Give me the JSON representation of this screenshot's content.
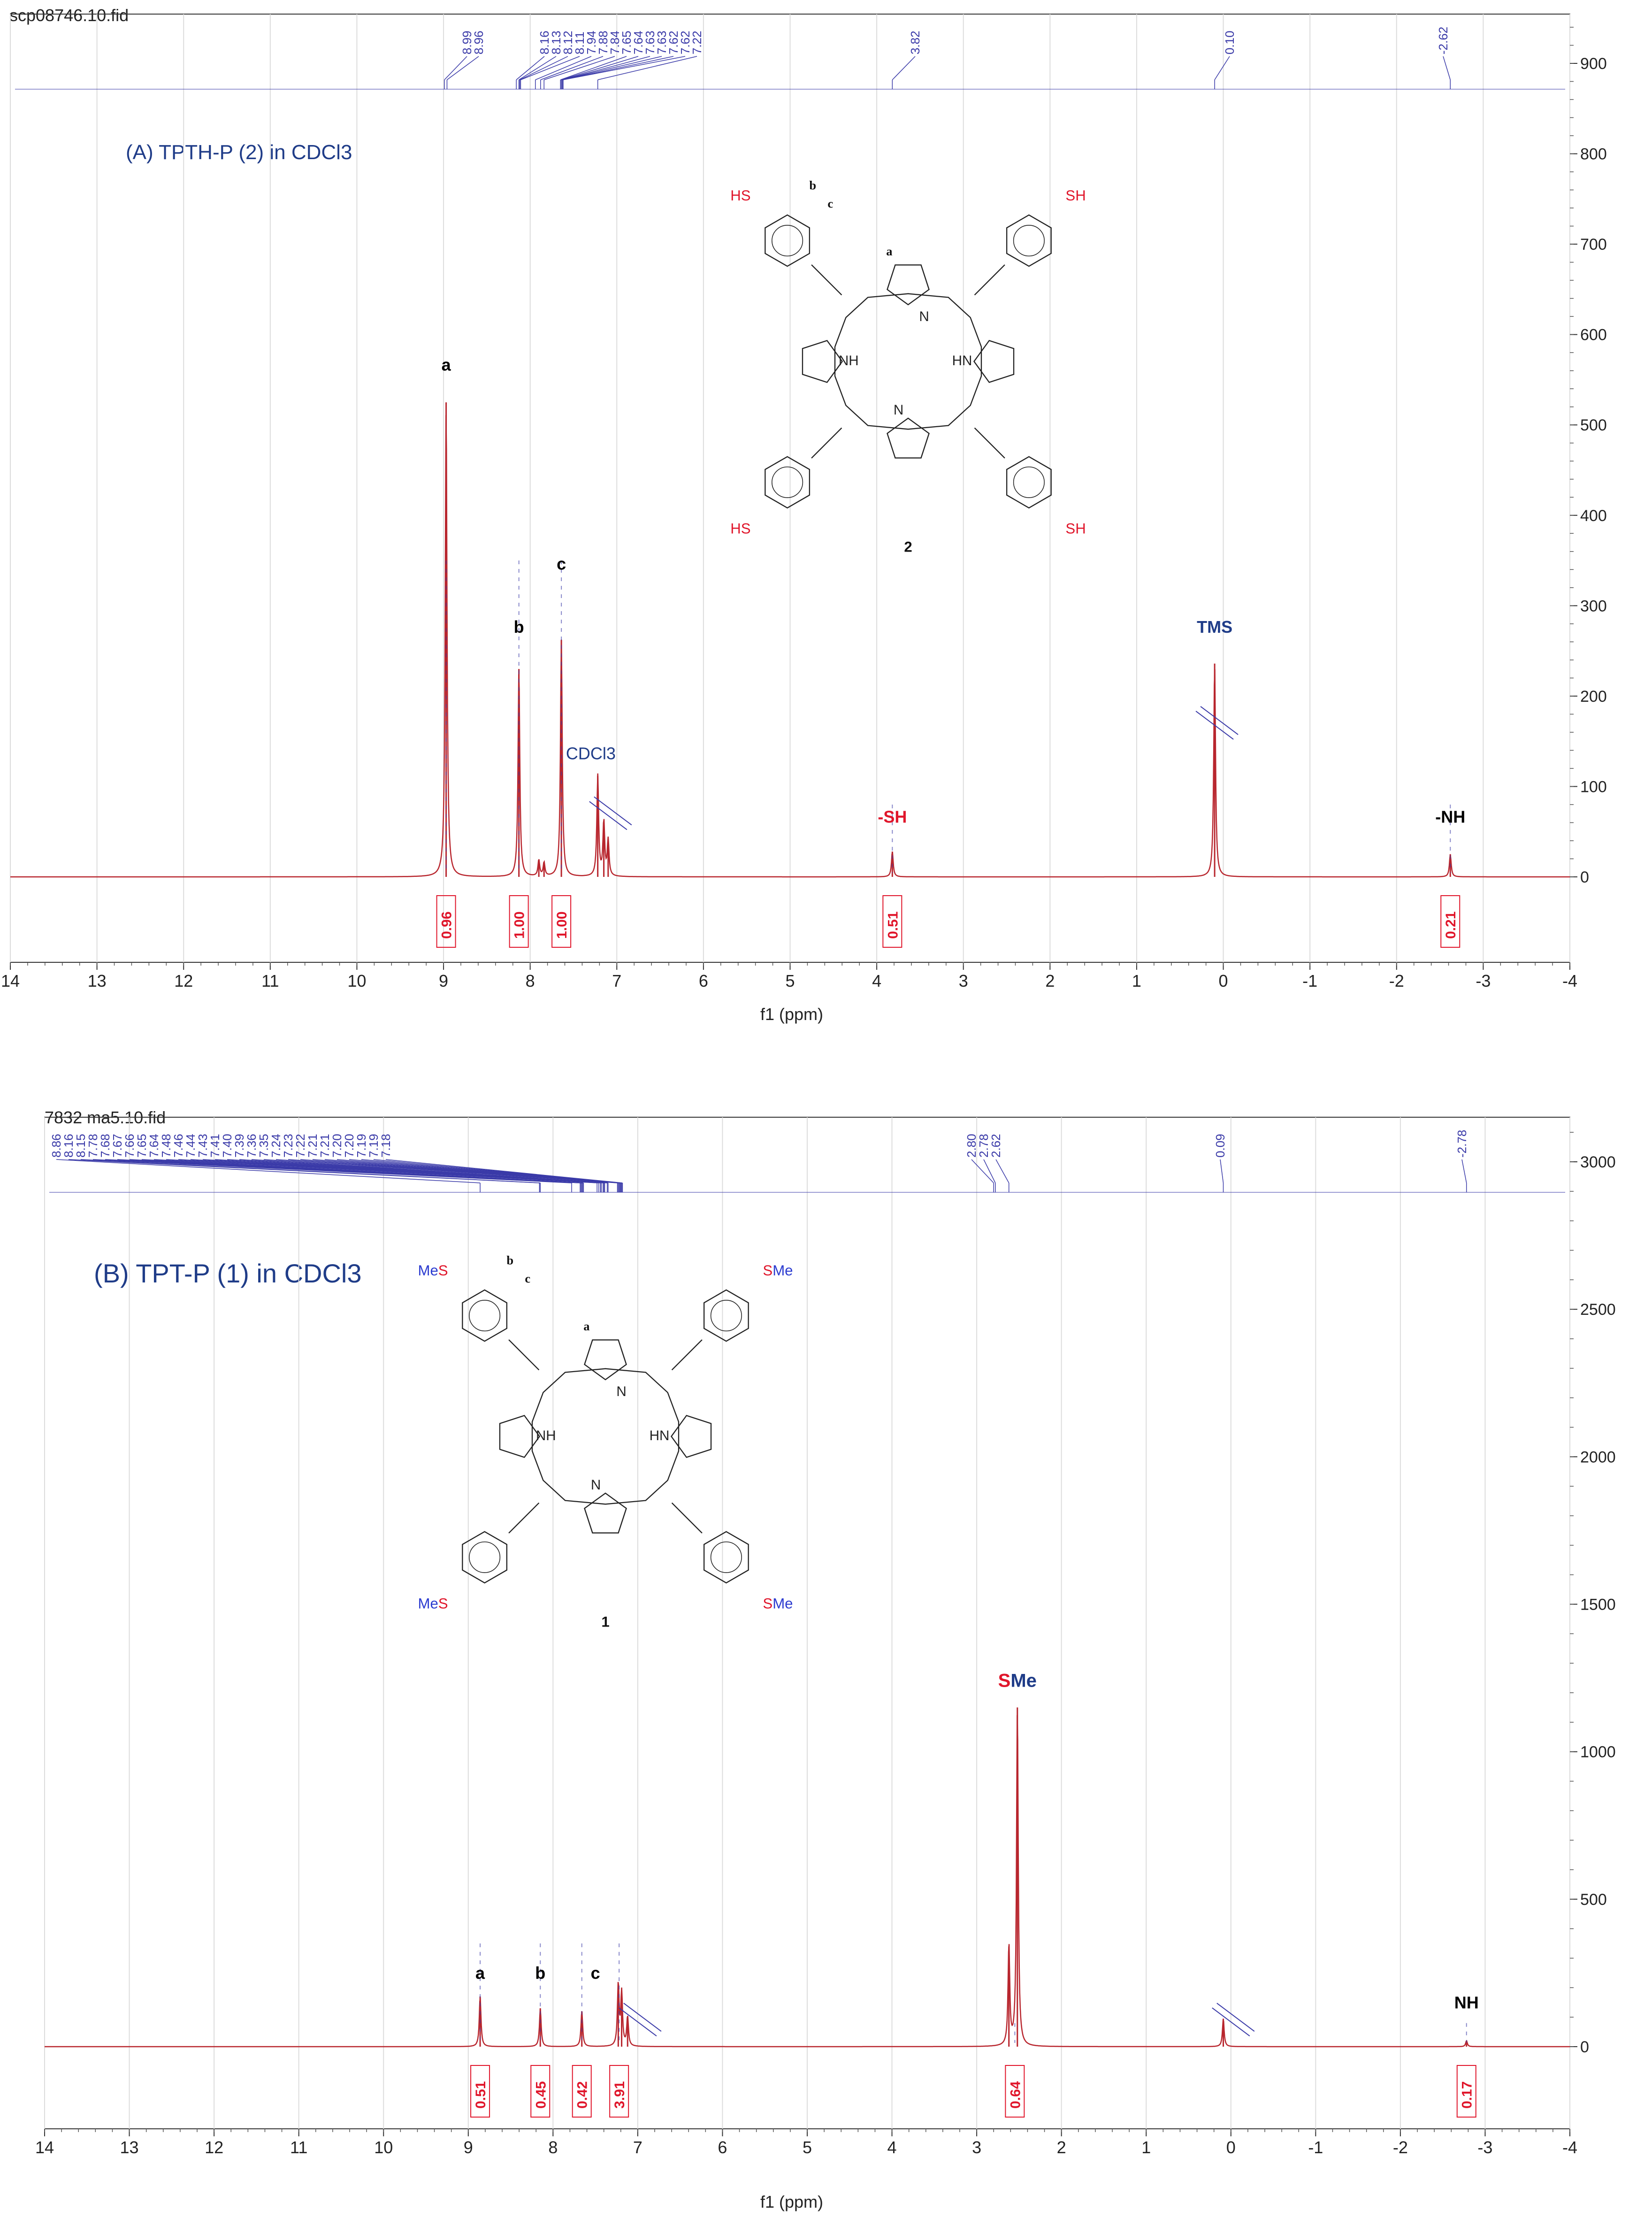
{
  "chart_data": [
    {
      "type": "nmr-spectrum",
      "file": "scp08746.10.fid",
      "title": "(A) TPTH-P (2) in CDCl3",
      "xlabel": "f1 (ppm)",
      "xlim": [
        14,
        -4
      ],
      "ylim": [
        -100,
        950
      ],
      "x_ticks": [
        "14",
        "13",
        "12",
        "11",
        "10",
        "9",
        "8",
        "7",
        "6",
        "5",
        "4",
        "3",
        "2",
        "1",
        "0",
        "-1",
        "-2",
        "-3",
        "-4"
      ],
      "y_ticks": [
        "0",
        "100",
        "200",
        "300",
        "400",
        "500",
        "600",
        "700",
        "800",
        "900"
      ],
      "peak_labels": [
        "8.99",
        "8.96",
        "8.16",
        "8.13",
        "8.12",
        "8.11",
        "7.94",
        "7.88",
        "7.84",
        "7.65",
        "7.64",
        "7.63",
        "7.63",
        "7.62",
        "7.62",
        "7.22",
        "3.82",
        "0.10",
        "-2.62"
      ],
      "peaks": [
        {
          "x": 8.97,
          "y": 525
        },
        {
          "x": 8.13,
          "y": 230
        },
        {
          "x": 7.9,
          "y": 18
        },
        {
          "x": 7.84,
          "y": 15
        },
        {
          "x": 7.64,
          "y": 262
        },
        {
          "x": 7.22,
          "y": 112
        },
        {
          "x": 7.15,
          "y": 60
        },
        {
          "x": 7.1,
          "y": 40
        },
        {
          "x": 3.82,
          "y": 28
        },
        {
          "x": 0.1,
          "y": 236
        },
        {
          "x": -2.62,
          "y": 25
        }
      ],
      "integrals": [
        {
          "x": 8.97,
          "value": "0.96"
        },
        {
          "x": 8.13,
          "value": "1.00"
        },
        {
          "x": 7.64,
          "value": "1.00"
        },
        {
          "x": 3.82,
          "value": "0.51"
        },
        {
          "x": -2.62,
          "value": "0.21"
        }
      ],
      "annotations": [
        {
          "text": "a",
          "x": 8.97,
          "y": 560,
          "color": "#000000"
        },
        {
          "text": "b",
          "x": 8.13,
          "y": 270,
          "color": "#000000"
        },
        {
          "text": "c",
          "x": 7.64,
          "y": 340,
          "color": "#000000"
        },
        {
          "text": "CDCl3",
          "x": 7.3,
          "y": 130,
          "color": "#1f3c88"
        },
        {
          "text": "-SH",
          "x": 3.82,
          "y": 60,
          "color": "#e0162b"
        },
        {
          "text": "TMS",
          "x": 0.1,
          "y": 270,
          "color": "#1f3c88"
        },
        {
          "text": "-NH",
          "x": -2.62,
          "y": 60,
          "color": "#000000"
        }
      ],
      "molecule": {
        "number": "2",
        "substituent": "SH",
        "substituent_left": "HS",
        "nh": "NH",
        "hn": "HN",
        "n": "N",
        "labels": [
          "a",
          "b",
          "c"
        ]
      }
    },
    {
      "type": "nmr-spectrum",
      "file": "7832 ma5.10.fid",
      "title": "(B) TPT-P (1) in CDCl3",
      "xlabel": "f1 (ppm)",
      "xlim": [
        14,
        -4
      ],
      "ylim": [
        -250,
        3150
      ],
      "x_ticks": [
        "14",
        "13",
        "12",
        "11",
        "10",
        "9",
        "8",
        "7",
        "6",
        "5",
        "4",
        "3",
        "2",
        "1",
        "0",
        "-1",
        "-2",
        "-3",
        "-4"
      ],
      "y_ticks": [
        "0",
        "500",
        "1000",
        "1500",
        "2000",
        "2500",
        "3000"
      ],
      "peak_labels": [
        "8.86",
        "8.16",
        "8.15",
        "7.78",
        "7.68",
        "7.67",
        "7.66",
        "7.65",
        "7.64",
        "7.48",
        "7.46",
        "7.44",
        "7.43",
        "7.41",
        "7.40",
        "7.39",
        "7.36",
        "7.35",
        "7.24",
        "7.23",
        "7.22",
        "7.21",
        "7.21",
        "7.20",
        "7.20",
        "7.19",
        "7.19",
        "7.18",
        "2.80",
        "2.78",
        "2.62",
        "0.09",
        "-2.78"
      ],
      "peaks": [
        {
          "x": 8.86,
          "y": 170
        },
        {
          "x": 8.15,
          "y": 130
        },
        {
          "x": 7.66,
          "y": 120
        },
        {
          "x": 7.23,
          "y": 210
        },
        {
          "x": 7.19,
          "y": 180
        },
        {
          "x": 7.12,
          "y": 100
        },
        {
          "x": 2.62,
          "y": 340
        },
        {
          "x": 2.52,
          "y": 1150
        },
        {
          "x": 0.09,
          "y": 95
        },
        {
          "x": -2.78,
          "y": 20
        }
      ],
      "integrals": [
        {
          "x": 8.86,
          "value": "0.51"
        },
        {
          "x": 8.15,
          "value": "0.45"
        },
        {
          "x": 7.66,
          "value": "0.42"
        },
        {
          "x": 7.22,
          "value": "3.91"
        },
        {
          "x": 2.55,
          "value": "0.64"
        },
        {
          "x": -2.78,
          "value": "0.17"
        }
      ],
      "annotations": [
        {
          "text": "a",
          "x": 8.86,
          "y": 230,
          "color": "#000000"
        },
        {
          "text": "b",
          "x": 8.15,
          "y": 230,
          "color": "#000000"
        },
        {
          "text": "c",
          "x": 7.5,
          "y": 230,
          "color": "#000000"
        },
        {
          "text": "NH",
          "x": -2.78,
          "y": 130,
          "color": "#000000"
        }
      ],
      "sme_label": {
        "s": "S",
        "me": "Me",
        "x": 2.52,
        "y": 1220
      },
      "molecule": {
        "number": "1",
        "substituent": "SMe",
        "substituent_left": "MeS",
        "nh": "NH",
        "hn": "HN",
        "n": "N",
        "labels": [
          "a",
          "b",
          "c"
        ]
      }
    }
  ],
  "colors": {
    "spectrum": "#b8262e",
    "peak_labels": "#3a3aa8",
    "integral": "#e0162b",
    "title": "#1f3c88",
    "substituent_red": "#e0162b",
    "substituent_blue": "#2b3bd0"
  }
}
